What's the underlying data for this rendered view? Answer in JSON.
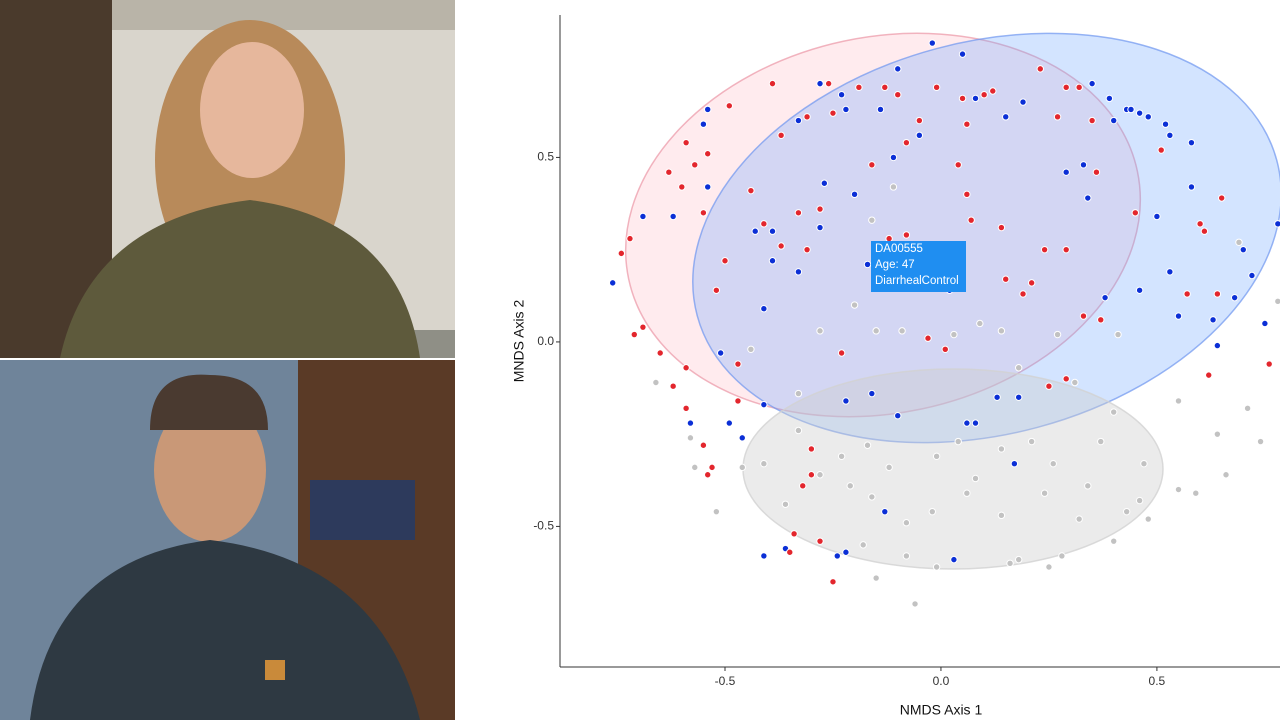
{
  "chart_data": {
    "type": "scatter",
    "xlabel": "NMDS Axis 1",
    "ylabel": "MNDS Axis 2",
    "xlim": [
      -0.882,
      0.785
    ],
    "ylim": [
      -0.881,
      0.886
    ],
    "xticks": [
      -0.5,
      {
        "value": 0,
        "label": "0.0"
      },
      0.5
    ],
    "yticks": [
      -0.5,
      {
        "value": 0,
        "label": "0.0"
      },
      0.5
    ],
    "tooltip": [
      "DA00555",
      "Age: 47",
      "DiarrhealControl"
    ],
    "series": [
      {
        "color": "#e3262d",
        "x": [
          -0.49,
          -0.39,
          -0.26,
          -0.19,
          -0.13,
          -0.01,
          0.05,
          0.1,
          0.12,
          0.23,
          0.29,
          0.27,
          0.35,
          0.36,
          0.51,
          0.6,
          0.65,
          0.61,
          0.45,
          0.29,
          0.24,
          0.14,
          0.07,
          0.06,
          0.04,
          -0.08,
          -0.16,
          -0.25,
          -0.31,
          -0.37,
          -0.44,
          -0.55,
          -0.6,
          -0.63,
          -0.57,
          -0.54,
          -0.59,
          -0.72,
          -0.74,
          -0.69,
          -0.71,
          -0.65,
          -0.59,
          -0.62,
          -0.59,
          -0.55,
          -0.53,
          -0.54,
          -0.47,
          -0.47,
          -0.23,
          -0.03,
          0.01,
          0.19,
          0.15,
          0.21,
          0.33,
          0.37,
          0.29,
          0.25,
          0.62,
          0.64,
          0.57,
          0.76,
          -0.28,
          -0.33,
          -0.41,
          -0.37,
          -0.31,
          -0.5,
          -0.52,
          -0.08,
          -0.12,
          0.32,
          0.06,
          -0.3,
          -0.3,
          -0.32,
          -0.28,
          -0.25,
          -0.34,
          -0.35,
          -0.1,
          -0.05
        ],
        "values": [
          0.64,
          0.7,
          0.7,
          0.69,
          0.69,
          0.69,
          0.66,
          0.67,
          0.68,
          0.74,
          0.69,
          0.61,
          0.6,
          0.46,
          0.52,
          0.32,
          0.39,
          0.3,
          0.35,
          0.25,
          0.25,
          0.31,
          0.33,
          0.4,
          0.48,
          0.54,
          0.48,
          0.62,
          0.61,
          0.56,
          0.41,
          0.35,
          0.42,
          0.46,
          0.48,
          0.51,
          0.54,
          0.28,
          0.24,
          0.04,
          0.02,
          -0.03,
          -0.07,
          -0.12,
          -0.18,
          -0.28,
          -0.34,
          -0.36,
          -0.16,
          -0.06,
          -0.03,
          0.01,
          -0.02,
          0.13,
          0.17,
          0.16,
          0.07,
          0.06,
          -0.1,
          -0.12,
          -0.09,
          0.13,
          0.13,
          -0.06,
          0.36,
          0.35,
          0.32,
          0.26,
          0.25,
          0.22,
          0.14,
          0.29,
          0.28,
          0.69,
          0.59,
          -0.29,
          -0.36,
          -0.39,
          -0.54,
          -0.65,
          -0.52,
          -0.57,
          0.67,
          0.6
        ]
      },
      {
        "color": "#0b2fd6",
        "x": [
          -0.02,
          0.05,
          -0.1,
          -0.28,
          -0.23,
          -0.22,
          -0.14,
          -0.05,
          0.08,
          0.15,
          0.19,
          0.35,
          0.39,
          0.4,
          0.43,
          0.44,
          0.46,
          0.48,
          0.52,
          0.53,
          0.58,
          0.29,
          0.33,
          0.34,
          0.5,
          0.58,
          0.53,
          0.55,
          0.63,
          0.68,
          0.7,
          0.72,
          0.78,
          0.75,
          0.64,
          0.46,
          0.38,
          0.18,
          0.13,
          0.08,
          0.06,
          0.17,
          0.03,
          -0.13,
          -0.22,
          -0.24,
          -0.36,
          -0.41,
          -0.16,
          -0.22,
          -0.1,
          -0.49,
          -0.46,
          -0.58,
          -0.41,
          -0.51,
          -0.41,
          -0.43,
          -0.39,
          -0.39,
          -0.33,
          -0.28,
          -0.27,
          -0.2,
          -0.11,
          -0.33,
          -0.54,
          -0.55,
          -0.54,
          -0.62,
          -0.69,
          -0.76,
          -0.17,
          0.02
        ],
        "values": [
          0.81,
          0.78,
          0.74,
          0.7,
          0.67,
          0.63,
          0.63,
          0.56,
          0.66,
          0.61,
          0.65,
          0.7,
          0.66,
          0.6,
          0.63,
          0.63,
          0.62,
          0.61,
          0.59,
          0.56,
          0.54,
          0.46,
          0.48,
          0.39,
          0.34,
          0.42,
          0.19,
          0.07,
          0.06,
          0.12,
          0.25,
          0.18,
          0.32,
          0.05,
          -0.01,
          0.14,
          0.12,
          -0.15,
          -0.15,
          -0.22,
          -0.22,
          -0.33,
          -0.59,
          -0.46,
          -0.57,
          -0.58,
          -0.56,
          -0.58,
          -0.14,
          -0.16,
          -0.2,
          -0.22,
          -0.26,
          -0.22,
          -0.17,
          -0.03,
          0.09,
          0.3,
          0.22,
          0.3,
          0.19,
          0.31,
          0.43,
          0.4,
          0.5,
          0.6,
          0.63,
          0.59,
          0.42,
          0.34,
          0.34,
          0.16,
          0.21,
          0.14
        ]
      },
      {
        "color": "#c2c2c2",
        "x": [
          -0.11,
          -0.16,
          -0.07,
          -0.2,
          -0.15,
          -0.28,
          -0.09,
          0.09,
          0.03,
          0.14,
          0.27,
          0.41,
          0.18,
          0.31,
          0.55,
          0.4,
          0.71,
          0.69,
          0.78,
          0.74,
          0.64,
          0.66,
          0.59,
          0.55,
          0.47,
          0.46,
          0.43,
          0.32,
          0.24,
          0.14,
          0.06,
          -0.02,
          -0.08,
          -0.16,
          -0.21,
          -0.28,
          -0.36,
          -0.41,
          -0.46,
          -0.52,
          -0.57,
          -0.58,
          -0.66,
          -0.44,
          -0.33,
          -0.23,
          -0.12,
          -0.01,
          0.04,
          0.14,
          0.26,
          0.34,
          0.16,
          0.18,
          -0.01,
          -0.06,
          -0.08,
          -0.15,
          -0.18,
          0.25,
          0.28,
          0.4,
          0.48,
          -0.33,
          -0.17,
          0.08,
          0.21,
          0.37
        ],
        "values": [
          0.42,
          0.33,
          0.22,
          0.1,
          0.03,
          0.03,
          0.03,
          0.05,
          0.02,
          0.03,
          0.02,
          0.02,
          -0.07,
          -0.11,
          -0.16,
          -0.19,
          -0.18,
          0.27,
          0.11,
          -0.27,
          -0.25,
          -0.36,
          -0.41,
          -0.4,
          -0.33,
          -0.43,
          -0.46,
          -0.48,
          -0.41,
          -0.47,
          -0.41,
          -0.46,
          -0.49,
          -0.42,
          -0.39,
          -0.36,
          -0.44,
          -0.33,
          -0.34,
          -0.46,
          -0.34,
          -0.26,
          -0.11,
          -0.02,
          -0.14,
          -0.31,
          -0.34,
          -0.31,
          -0.27,
          -0.29,
          -0.33,
          -0.39,
          -0.6,
          -0.59,
          -0.61,
          -0.71,
          -0.58,
          -0.64,
          -0.55,
          -0.61,
          -0.58,
          -0.54,
          -0.48,
          -0.24,
          -0.28,
          -0.37,
          -0.27,
          -0.27
        ]
      }
    ]
  }
}
